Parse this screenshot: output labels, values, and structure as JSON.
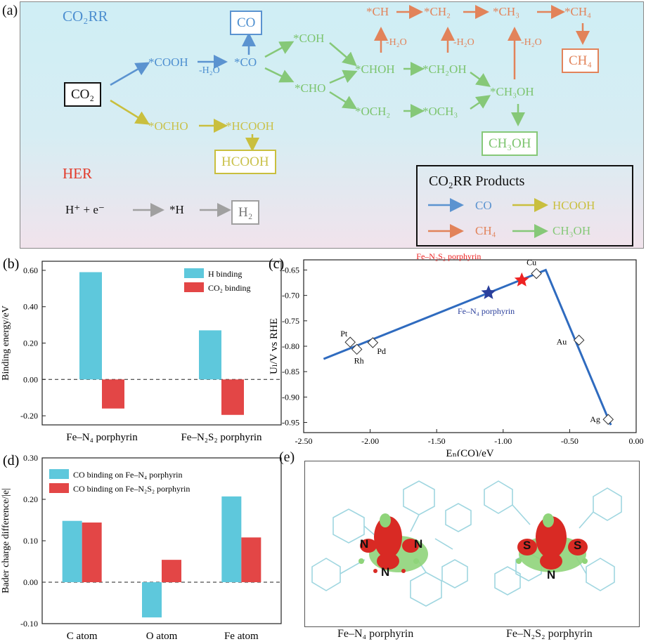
{
  "panel_a": {
    "label": "(a)",
    "co2rr_title": "CO₂RR",
    "her_title": "HER",
    "co2": "CO₂",
    "species": {
      "cooh": "*COOH",
      "co_ads": "*CO",
      "co_prod": "CO",
      "h2o_1": "-H₂O",
      "coh": "*COH",
      "cho": "*CHO",
      "chohh": "*CHOH",
      "ch2oh": "*CH₂OH",
      "och2": "*OCH₂",
      "och3": "*OCH₃",
      "ch3oh_ads": "*CH₃OH",
      "ch3oh_prod": "CH₃OH",
      "ch": "*CH",
      "ch2": "*CH₂",
      "ch3": "*CH₃",
      "ch4_ads": "*CH₄",
      "ch4_prod": "CH₄",
      "h2o_2": "-H₂O",
      "h2o_3": "-H₂O",
      "h2o_4": "-H₂O",
      "ocho": "*OCHO",
      "hcooh_ads": "*HCOOH",
      "hcooh_prod": "HCOOH",
      "her_reactants": "H⁺ + e⁻",
      "h_ads": "*H",
      "h2": "H₂"
    },
    "legend": {
      "title": "CO₂RR Products",
      "items": [
        {
          "label": "CO",
          "color": "#5b93d0"
        },
        {
          "label": "HCOOH",
          "color": "#c9bf3e"
        },
        {
          "label": "CH₄",
          "color": "#e2835a"
        },
        {
          "label": "CH₃OH",
          "color": "#86c878"
        }
      ]
    }
  },
  "chart_data": [
    {
      "panel": "(b)",
      "type": "bar",
      "categories": [
        "Fe–N₄ porphyrin",
        "Fe–N₂S₂ porphyrin"
      ],
      "series": [
        {
          "name": "H binding",
          "values": [
            0.59,
            0.27
          ],
          "color": "#5ec8dc"
        },
        {
          "name": "CO₂ binding",
          "values": [
            -0.16,
            -0.195
          ],
          "color": "#e34646"
        }
      ],
      "ylabel": "Binding energy/eV",
      "ylim": [
        -0.25,
        0.65
      ],
      "yticks": [
        -0.2,
        0.0,
        0.2,
        0.4,
        0.6
      ],
      "ytick_labels": [
        "-0.20",
        "0.00",
        "0.20",
        "0.40",
        "0.60"
      ],
      "legend_pos": "top-right"
    },
    {
      "panel": "(c)",
      "type": "scatter",
      "xlabel": "Eₙ(CO)/eV",
      "ylabel": "Uₗ/V vs RHE",
      "xlim": [
        -2.5,
        0.0
      ],
      "ylim": [
        -0.97,
        -0.63
      ],
      "xticks": [
        -2.5,
        -2.0,
        -1.5,
        -1.0,
        -0.5,
        0.0
      ],
      "xtick_labels": [
        "-2.50",
        "-2.00",
        "-1.50",
        "-1.00",
        "-0.50",
        "0.00"
      ],
      "yticks": [
        -0.95,
        -0.9,
        -0.85,
        -0.8,
        -0.75,
        -0.7,
        -0.65
      ],
      "ytick_labels": [
        "-0.95",
        "-0.90",
        "-0.85",
        "-0.80",
        "-0.75",
        "-0.70",
        "-0.65"
      ],
      "volcano_line": [
        {
          "x": -2.35,
          "y": -0.825
        },
        {
          "x": -0.68,
          "y": -0.65
        },
        {
          "x": -0.19,
          "y": -0.955
        }
      ],
      "metals": [
        {
          "name": "Pt",
          "x": -2.15,
          "y": -0.792
        },
        {
          "name": "Rh",
          "x": -2.1,
          "y": -0.806
        },
        {
          "name": "Pd",
          "x": -1.98,
          "y": -0.793
        },
        {
          "name": "Cu",
          "x": -0.75,
          "y": -0.657
        },
        {
          "name": "Au",
          "x": -0.43,
          "y": -0.788
        },
        {
          "name": "Ag",
          "x": -0.21,
          "y": -0.944
        }
      ],
      "stars": [
        {
          "name": "Fe–N₄ porphyrin",
          "x": -1.11,
          "y": -0.695,
          "color": "#2a3f9c"
        },
        {
          "name": "Fe–N₂S₂ porphyrin",
          "x": -0.86,
          "y": -0.67,
          "color": "#ee2222"
        }
      ]
    },
    {
      "panel": "(d)",
      "type": "bar",
      "categories": [
        "C atom",
        "O atom",
        "Fe atom"
      ],
      "series": [
        {
          "name": "CO binding on Fe–N₄ porphyrin",
          "values": [
            0.148,
            -0.085,
            0.207
          ],
          "color": "#5ec8dc"
        },
        {
          "name": "CO binding on Fe–N₂S₂ porphyrin",
          "values": [
            0.144,
            0.054,
            0.108
          ],
          "color": "#e34646"
        }
      ],
      "ylabel": "Bader charge difference/|e|",
      "ylim": [
        -0.1,
        0.3
      ],
      "yticks": [
        -0.1,
        0.0,
        0.1,
        0.2,
        0.3
      ],
      "ytick_labels": [
        "-0.10",
        "0.00",
        "0.10",
        "0.20",
        "0.30"
      ],
      "legend_pos": "top-left"
    }
  ],
  "panel_e": {
    "label": "(e)",
    "captions": [
      "Fe–N₄ porphyrin",
      "Fe–N₂S₂ porphyrin"
    ],
    "left_atoms": [
      "N",
      "N",
      "N"
    ],
    "right_atoms": [
      "S",
      "S",
      "N"
    ]
  }
}
